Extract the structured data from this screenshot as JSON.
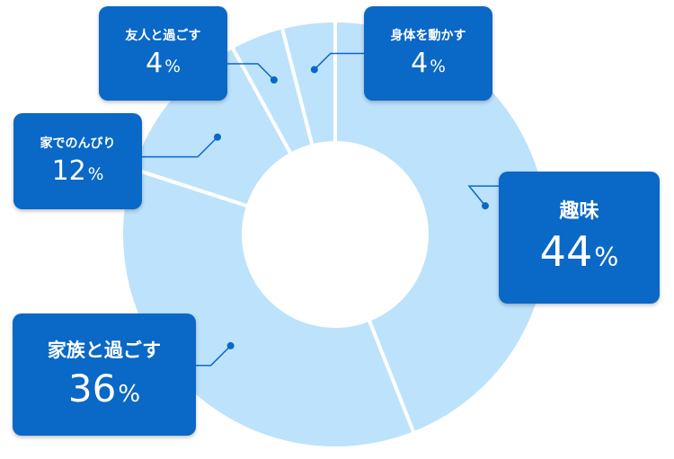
{
  "chart_data": {
    "type": "pie",
    "variant": "donut",
    "categories": [
      "趣味",
      "家族と過ごす",
      "家でのんびり",
      "友人と過ごす",
      "身体を動かす"
    ],
    "values": [
      44,
      36,
      12,
      4,
      4
    ],
    "unit": "%",
    "colors": {
      "slice": "#bde2fb",
      "separator": "#ffffff",
      "label_box": "#0a68c6",
      "leader": "#0a68c6"
    }
  },
  "labels": {
    "asobi": {
      "name": "趣味",
      "value": "44",
      "unit": "%"
    },
    "kazoku": {
      "name": "家族と過ごす",
      "value": "36",
      "unit": "%"
    },
    "ie": {
      "name": "家でのんびり",
      "value": "12",
      "unit": "%"
    },
    "tomo": {
      "name": "友人と過ごす",
      "value": "4",
      "unit": "%"
    },
    "karada": {
      "name": "身体を動かす",
      "value": "4",
      "unit": "%"
    }
  }
}
